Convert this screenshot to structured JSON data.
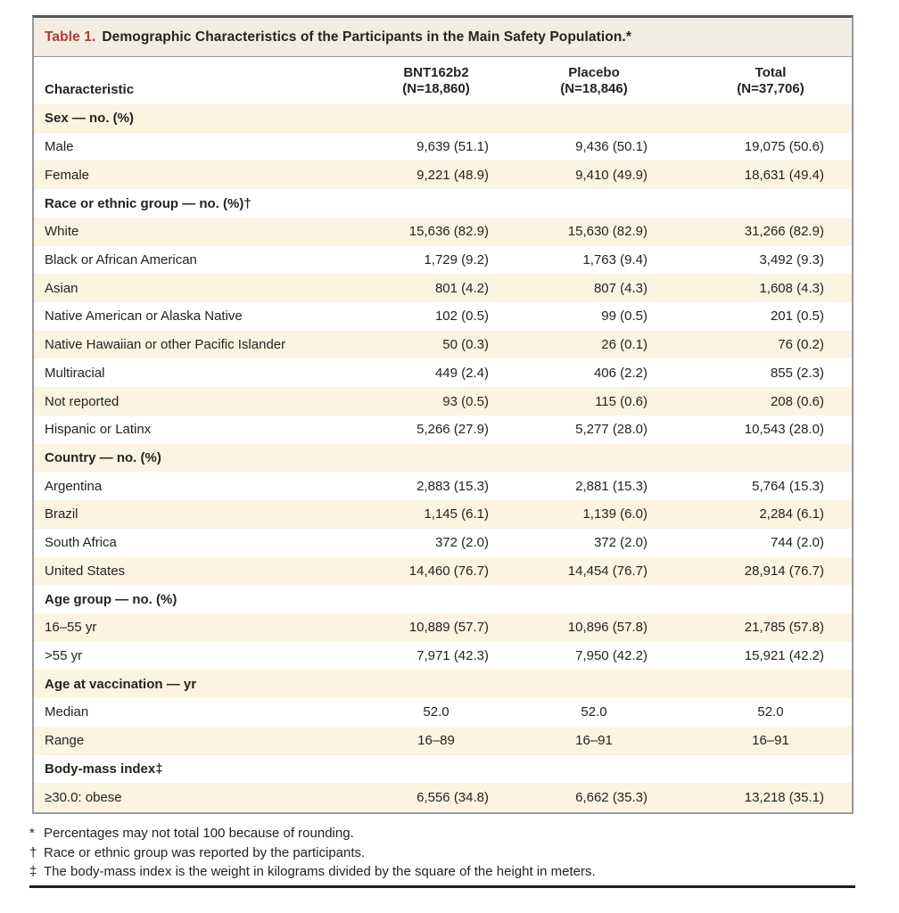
{
  "table": {
    "title_label": "Table 1.",
    "title_text": "Demographic Characteristics of the Participants in the Main Safety Population.*",
    "columns": {
      "characteristic": "Characteristic",
      "groups": [
        {
          "name": "BNT162b2",
          "n": "(N=18,860)"
        },
        {
          "name": "Placebo",
          "n": "(N=18,846)"
        },
        {
          "name": "Total",
          "n": "(N=37,706)"
        }
      ]
    },
    "rows": [
      {
        "type": "section",
        "label": "Sex — no. (%)"
      },
      {
        "type": "data",
        "label": "Male",
        "values": [
          "9,639 (51.1)",
          "9,436 (50.1)",
          "19,075 (50.6)"
        ]
      },
      {
        "type": "data",
        "label": "Female",
        "values": [
          "9,221 (48.9)",
          "9,410 (49.9)",
          "18,631 (49.4)"
        ]
      },
      {
        "type": "section",
        "label": "Race or ethnic group — no. (%)†"
      },
      {
        "type": "data",
        "label": "White",
        "values": [
          "15,636 (82.9)",
          "15,630 (82.9)",
          "31,266 (82.9)"
        ]
      },
      {
        "type": "data",
        "label": "Black or African American",
        "values": [
          "1,729 (9.2)",
          "1,763 (9.4)",
          "3,492 (9.3)"
        ]
      },
      {
        "type": "data",
        "label": "Asian",
        "values": [
          "801 (4.2)",
          "807 (4.3)",
          "1,608 (4.3)"
        ]
      },
      {
        "type": "data",
        "label": "Native American or Alaska Native",
        "values": [
          "102 (0.5)",
          "99 (0.5)",
          "201 (0.5)"
        ]
      },
      {
        "type": "data",
        "label": "Native Hawaiian or other Pacific Islander",
        "values": [
          "50 (0.3)",
          "26 (0.1)",
          "76 (0.2)"
        ]
      },
      {
        "type": "data",
        "label": "Multiracial",
        "values": [
          "449 (2.4)",
          "406 (2.2)",
          "855 (2.3)"
        ]
      },
      {
        "type": "data",
        "label": "Not reported",
        "values": [
          "93 (0.5)",
          "115 (0.6)",
          "208 (0.6)"
        ]
      },
      {
        "type": "data",
        "label": "Hispanic or Latinx",
        "values": [
          "5,266 (27.9)",
          "5,277 (28.0)",
          "10,543 (28.0)"
        ]
      },
      {
        "type": "section",
        "label": "Country — no. (%)"
      },
      {
        "type": "data",
        "label": "Argentina",
        "values": [
          "2,883 (15.3)",
          "2,881 (15.3)",
          "5,764 (15.3)"
        ]
      },
      {
        "type": "data",
        "label": "Brazil",
        "values": [
          "1,145 (6.1)",
          "1,139 (6.0)",
          "2,284 (6.1)"
        ]
      },
      {
        "type": "data",
        "label": "South Africa",
        "values": [
          "372 (2.0)",
          "372 (2.0)",
          "744 (2.0)"
        ]
      },
      {
        "type": "data",
        "label": "United States",
        "values": [
          "14,460 (76.7)",
          "14,454 (76.7)",
          "28,914 (76.7)"
        ]
      },
      {
        "type": "section",
        "label": "Age group — no. (%)"
      },
      {
        "type": "data",
        "label": "16–55 yr",
        "values": [
          "10,889 (57.7)",
          "10,896 (57.8)",
          "21,785 (57.8)"
        ]
      },
      {
        "type": "data",
        "label": ">55 yr",
        "values": [
          "7,971 (42.3)",
          "7,950 (42.2)",
          "15,921 (42.2)"
        ]
      },
      {
        "type": "section",
        "label": "Age at vaccination — yr"
      },
      {
        "type": "data",
        "align": "center",
        "label": "Median",
        "values": [
          "52.0",
          "52.0",
          "52.0"
        ]
      },
      {
        "type": "data",
        "align": "center",
        "label": "Range",
        "values": [
          "16–89",
          "16–91",
          "16–91"
        ]
      },
      {
        "type": "section",
        "label": "Body-mass index‡"
      },
      {
        "type": "data",
        "label": "≥30.0: obese",
        "values": [
          "6,556 (34.8)",
          "6,662 (35.3)",
          "13,218 (35.1)"
        ]
      }
    ],
    "footnotes": [
      {
        "marker": "*",
        "text": "Percentages may not total 100 because of rounding."
      },
      {
        "marker": "†",
        "text": "Race or ethnic group was reported by the participants."
      },
      {
        "marker": "‡",
        "text": "The body-mass index is the weight in kilograms divided by the square of the height in meters."
      }
    ],
    "colors": {
      "accent_red": "#b23a32",
      "stripe_cream": "#fdf3e1",
      "title_band": "#f2ede3",
      "rule_dark": "#1c1c1c",
      "border_gray": "#97989b"
    }
  }
}
